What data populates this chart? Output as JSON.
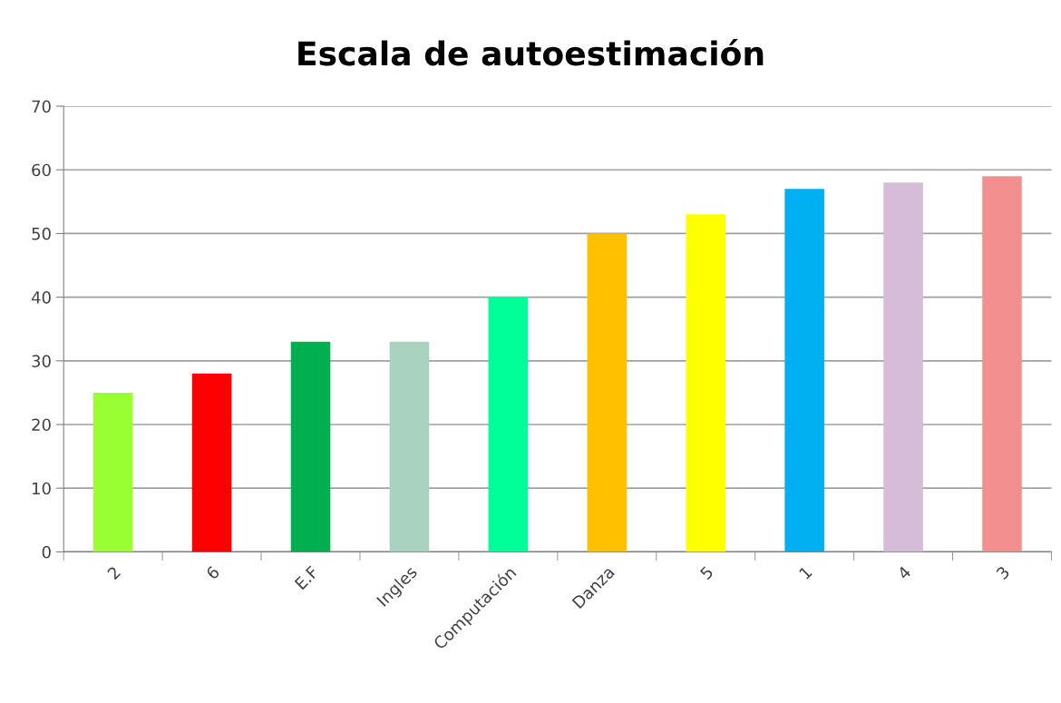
{
  "chart_data": {
    "type": "bar",
    "title": "Escala de autoestimación",
    "categories": [
      "2",
      "6",
      "E.F",
      "Ingles",
      "Computación",
      "Danza",
      "5",
      "1",
      "4",
      "3"
    ],
    "values": [
      25,
      28,
      33,
      33,
      40,
      50,
      53,
      57,
      58,
      59
    ],
    "colors": [
      "#99ff33",
      "#ff0000",
      "#00b050",
      "#a9d1c0",
      "#00ff99",
      "#ffc000",
      "#ffff00",
      "#00b0f0",
      "#d6bcd8",
      "#f29090"
    ],
    "ylim": [
      0,
      70
    ],
    "yticks": [
      0,
      10,
      20,
      30,
      40,
      50,
      60,
      70
    ],
    "grid": "y",
    "legend": false
  }
}
